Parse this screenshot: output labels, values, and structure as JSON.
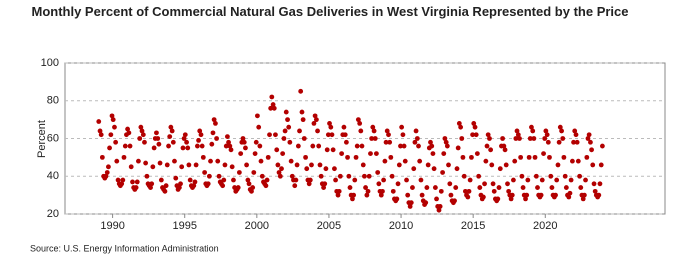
{
  "chart_data": {
    "type": "scatter",
    "title": "Monthly Percent of Commercial Natural Gas Deliveries in West Virginia Represented by the Price",
    "y_label": "Percent",
    "source": "Source: U.S. Energy Information Administration",
    "color": "#b30000",
    "grid": true,
    "xlim": [
      1986.7,
      2028.3
    ],
    "xticks": [
      1990,
      1995,
      2000,
      2005,
      2010,
      2015,
      2020
    ],
    "ylim": [
      20,
      100
    ],
    "yticks": [
      20,
      40,
      60,
      80,
      100
    ],
    "x": [
      1989.04,
      1989.13,
      1989.21,
      1989.29,
      1989.38,
      1989.46,
      1989.54,
      1989.63,
      1989.71,
      1989.79,
      1989.88,
      1989.96,
      1990.04,
      1990.13,
      1990.21,
      1990.29,
      1990.38,
      1990.46,
      1990.54,
      1990.63,
      1990.71,
      1990.79,
      1990.88,
      1990.96,
      1991.04,
      1991.13,
      1991.21,
      1991.29,
      1991.38,
      1991.46,
      1991.54,
      1991.63,
      1991.71,
      1991.79,
      1991.88,
      1991.96,
      1992.04,
      1992.13,
      1992.21,
      1992.29,
      1992.38,
      1992.46,
      1992.54,
      1992.63,
      1992.71,
      1992.79,
      1992.88,
      1992.96,
      1993.04,
      1993.13,
      1993.21,
      1993.29,
      1993.38,
      1993.46,
      1993.54,
      1993.63,
      1993.71,
      1993.79,
      1993.88,
      1993.96,
      1994.04,
      1994.13,
      1994.21,
      1994.29,
      1994.38,
      1994.46,
      1994.54,
      1994.63,
      1994.71,
      1994.79,
      1994.88,
      1994.96,
      1995.04,
      1995.13,
      1995.21,
      1995.29,
      1995.38,
      1995.46,
      1995.54,
      1995.63,
      1995.71,
      1995.79,
      1995.88,
      1995.96,
      1996.04,
      1996.13,
      1996.21,
      1996.29,
      1996.38,
      1996.46,
      1996.54,
      1996.63,
      1996.71,
      1996.79,
      1996.88,
      1996.96,
      1997.04,
      1997.13,
      1997.21,
      1997.29,
      1997.38,
      1997.46,
      1997.54,
      1997.63,
      1997.71,
      1997.79,
      1997.88,
      1997.96,
      1998.04,
      1998.13,
      1998.21,
      1998.29,
      1998.38,
      1998.46,
      1998.54,
      1998.63,
      1998.71,
      1998.79,
      1998.88,
      1998.96,
      1999.04,
      1999.13,
      1999.21,
      1999.29,
      1999.38,
      1999.46,
      1999.54,
      1999.63,
      1999.71,
      1999.79,
      1999.88,
      1999.96,
      2000.04,
      2000.13,
      2000.21,
      2000.29,
      2000.38,
      2000.46,
      2000.54,
      2000.63,
      2000.71,
      2000.79,
      2000.88,
      2000.96,
      2001.04,
      2001.13,
      2001.21,
      2001.29,
      2001.38,
      2001.46,
      2001.54,
      2001.63,
      2001.71,
      2001.79,
      2001.88,
      2001.96,
      2002.04,
      2002.13,
      2002.21,
      2002.29,
      2002.38,
      2002.46,
      2002.54,
      2002.63,
      2002.71,
      2002.79,
      2002.88,
      2002.96,
      2003.04,
      2003.13,
      2003.21,
      2003.29,
      2003.38,
      2003.46,
      2003.54,
      2003.63,
      2003.71,
      2003.79,
      2003.88,
      2003.96,
      2004.04,
      2004.13,
      2004.21,
      2004.29,
      2004.38,
      2004.46,
      2004.54,
      2004.63,
      2004.71,
      2004.79,
      2004.88,
      2004.96,
      2005.04,
      2005.13,
      2005.21,
      2005.29,
      2005.38,
      2005.46,
      2005.54,
      2005.63,
      2005.71,
      2005.79,
      2005.88,
      2005.96,
      2006.04,
      2006.13,
      2006.21,
      2006.29,
      2006.38,
      2006.46,
      2006.54,
      2006.63,
      2006.71,
      2006.79,
      2006.88,
      2006.96,
      2007.04,
      2007.13,
      2007.21,
      2007.29,
      2007.38,
      2007.46,
      2007.54,
      2007.63,
      2007.71,
      2007.79,
      2007.88,
      2007.96,
      2008.04,
      2008.13,
      2008.21,
      2008.29,
      2008.38,
      2008.46,
      2008.54,
      2008.63,
      2008.71,
      2008.79,
      2008.88,
      2008.96,
      2009.04,
      2009.13,
      2009.21,
      2009.29,
      2009.38,
      2009.46,
      2009.54,
      2009.63,
      2009.71,
      2009.79,
      2009.88,
      2009.96,
      2010.04,
      2010.13,
      2010.21,
      2010.29,
      2010.38,
      2010.46,
      2010.54,
      2010.63,
      2010.71,
      2010.79,
      2010.88,
      2010.96,
      2011.04,
      2011.13,
      2011.21,
      2011.29,
      2011.38,
      2011.46,
      2011.54,
      2011.63,
      2011.71,
      2011.79,
      2011.88,
      2011.96,
      2012.04,
      2012.13,
      2012.21,
      2012.29,
      2012.38,
      2012.46,
      2012.54,
      2012.63,
      2012.71,
      2012.79,
      2012.88,
      2012.96,
      2013.04,
      2013.13,
      2013.21,
      2013.29,
      2013.38,
      2013.46,
      2013.54,
      2013.63,
      2013.71,
      2013.79,
      2013.88,
      2013.96,
      2014.04,
      2014.13,
      2014.21,
      2014.29,
      2014.38,
      2014.46,
      2014.54,
      2014.63,
      2014.71,
      2014.79,
      2014.88,
      2014.96,
      2015.04,
      2015.13,
      2015.21,
      2015.29,
      2015.38,
      2015.46,
      2015.54,
      2015.63,
      2015.71,
      2015.79,
      2015.88,
      2015.96,
      2016.04,
      2016.13,
      2016.21,
      2016.29,
      2016.38,
      2016.46,
      2016.54,
      2016.63,
      2016.71,
      2016.79,
      2016.88,
      2016.96,
      2017.04,
      2017.13,
      2017.21,
      2017.29,
      2017.38,
      2017.46,
      2017.54,
      2017.63,
      2017.71,
      2017.79,
      2017.88,
      2017.96,
      2018.04,
      2018.13,
      2018.21,
      2018.29,
      2018.38,
      2018.46,
      2018.54,
      2018.63,
      2018.71,
      2018.79,
      2018.88,
      2018.96,
      2019.04,
      2019.13,
      2019.21,
      2019.29,
      2019.38,
      2019.46,
      2019.54,
      2019.63,
      2019.71,
      2019.79,
      2019.88,
      2019.96,
      2020.04,
      2020.13,
      2020.21,
      2020.29,
      2020.38,
      2020.46,
      2020.54,
      2020.63,
      2020.71,
      2020.79,
      2020.88,
      2020.96,
      2021.04,
      2021.13,
      2021.21,
      2021.29,
      2021.38,
      2021.46,
      2021.54,
      2021.63,
      2021.71,
      2021.79,
      2021.88,
      2021.96,
      2022.04,
      2022.13,
      2022.21,
      2022.29,
      2022.38,
      2022.46,
      2022.54,
      2022.63,
      2022.71,
      2022.79,
      2022.88,
      2022.96,
      2023.04,
      2023.13,
      2023.21,
      2023.29,
      2023.38,
      2023.46,
      2023.54,
      2023.63,
      2023.71,
      2023.79,
      2023.88,
      2023.96
    ],
    "values": [
      69,
      64,
      62,
      50,
      40,
      39,
      40,
      42,
      45,
      55,
      62,
      72,
      70,
      66,
      58,
      48,
      38,
      36,
      35,
      36,
      38,
      50,
      56,
      62,
      65,
      63,
      56,
      45,
      37,
      34,
      33,
      34,
      37,
      48,
      60,
      66,
      64,
      62,
      58,
      47,
      40,
      36,
      35,
      34,
      36,
      45,
      55,
      60,
      63,
      60,
      57,
      47,
      38,
      34,
      33,
      32,
      35,
      46,
      56,
      61,
      66,
      64,
      58,
      48,
      39,
      35,
      33,
      34,
      36,
      45,
      55,
      60,
      62,
      58,
      55,
      46,
      38,
      35,
      34,
      35,
      37,
      46,
      56,
      59,
      64,
      62,
      56,
      50,
      42,
      36,
      35,
      36,
      40,
      48,
      57,
      63,
      70,
      68,
      60,
      48,
      40,
      37,
      36,
      35,
      38,
      46,
      56,
      61,
      58,
      56,
      54,
      45,
      38,
      34,
      32,
      33,
      34,
      42,
      52,
      58,
      60,
      58,
      55,
      46,
      38,
      36,
      33,
      32,
      34,
      42,
      52,
      58,
      72,
      66,
      56,
      48,
      40,
      37,
      36,
      35,
      38,
      50,
      62,
      76,
      82,
      78,
      76,
      62,
      54,
      46,
      42,
      40,
      44,
      52,
      60,
      64,
      74,
      70,
      66,
      58,
      48,
      40,
      38,
      35,
      38,
      46,
      56,
      64,
      85,
      74,
      70,
      60,
      50,
      44,
      38,
      36,
      38,
      46,
      56,
      68,
      72,
      70,
      64,
      56,
      46,
      40,
      36,
      34,
      36,
      44,
      54,
      62,
      68,
      66,
      62,
      54,
      44,
      38,
      32,
      30,
      32,
      40,
      52,
      62,
      66,
      62,
      58,
      50,
      40,
      34,
      30,
      28,
      30,
      38,
      50,
      56,
      70,
      68,
      64,
      56,
      46,
      40,
      34,
      30,
      32,
      40,
      52,
      60,
      66,
      64,
      60,
      52,
      42,
      36,
      32,
      30,
      32,
      38,
      48,
      58,
      64,
      62,
      58,
      50,
      40,
      32,
      28,
      27,
      28,
      36,
      46,
      56,
      66,
      62,
      56,
      48,
      38,
      30,
      26,
      24,
      26,
      34,
      44,
      58,
      64,
      60,
      56,
      48,
      38,
      30,
      27,
      25,
      26,
      34,
      46,
      55,
      58,
      56,
      52,
      44,
      34,
      28,
      24,
      22,
      24,
      32,
      42,
      52,
      60,
      58,
      56,
      46,
      36,
      30,
      27,
      26,
      27,
      34,
      44,
      55,
      68,
      66,
      60,
      50,
      40,
      32,
      30,
      29,
      32,
      38,
      50,
      62,
      68,
      66,
      62,
      52,
      40,
      34,
      30,
      28,
      29,
      36,
      48,
      56,
      62,
      60,
      54,
      46,
      36,
      32,
      28,
      27,
      28,
      34,
      44,
      56,
      60,
      56,
      54,
      46,
      36,
      32,
      30,
      28,
      30,
      38,
      48,
      60,
      64,
      62,
      60,
      50,
      40,
      34,
      30,
      28,
      30,
      38,
      50,
      60,
      66,
      64,
      60,
      50,
      40,
      34,
      30,
      29,
      30,
      38,
      52,
      60,
      64,
      62,
      58,
      50,
      40,
      34,
      30,
      29,
      30,
      38,
      46,
      58,
      66,
      64,
      60,
      50,
      40,
      34,
      30,
      29,
      31,
      38,
      48,
      58,
      64,
      62,
      58,
      48,
      40,
      34,
      30,
      28,
      30,
      38,
      50,
      60,
      62,
      58,
      54,
      46,
      36,
      32,
      30,
      29,
      30,
      36,
      46,
      56
    ]
  }
}
